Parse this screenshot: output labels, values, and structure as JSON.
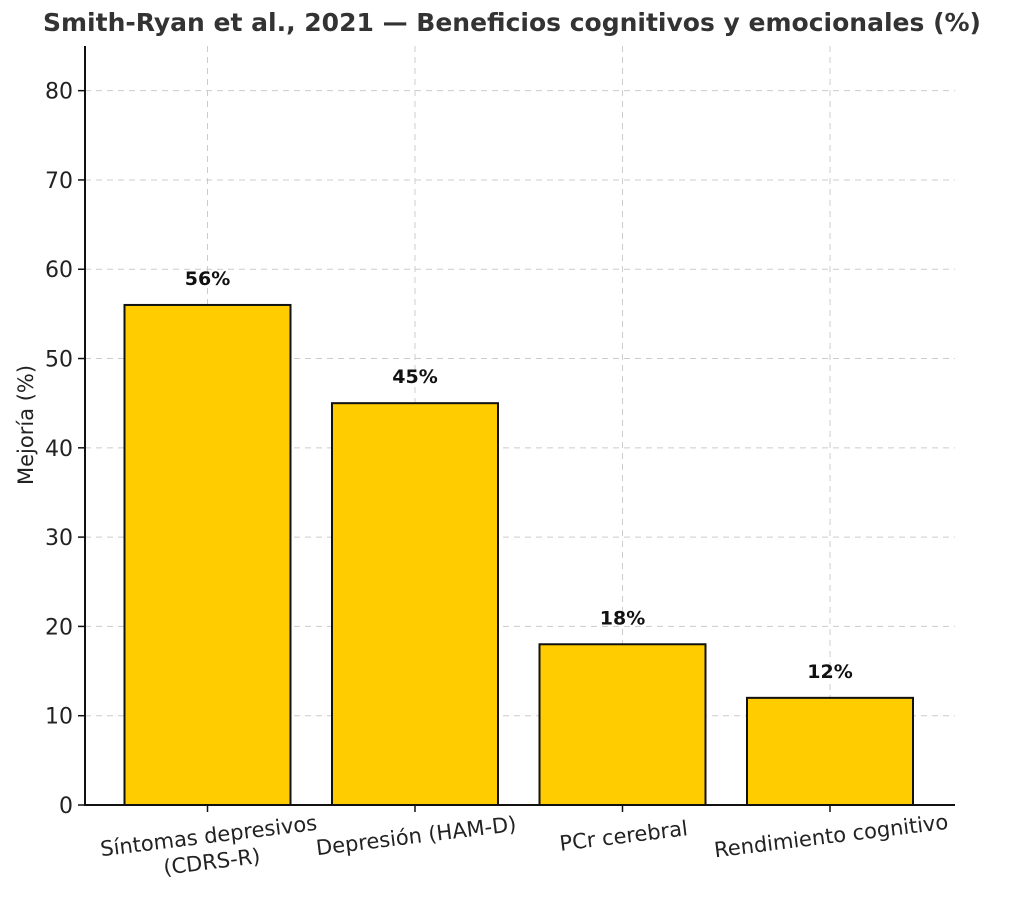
{
  "chart_data": {
    "type": "bar",
    "title": "Smith-Ryan et al., 2021 — Beneficios cognitivos y emocionales (%)",
    "xlabel": "",
    "ylabel": "Mejoría (%)",
    "categories": [
      [
        "Síntomas depresivos",
        "(CDRS-R)"
      ],
      [
        "Depresión (HAM-D)"
      ],
      [
        "PCr cerebral"
      ],
      [
        "Rendimiento cognitivo"
      ]
    ],
    "values": [
      56,
      45,
      18,
      12
    ],
    "value_labels": [
      "56%",
      "45%",
      "18%",
      "12%"
    ],
    "ylim": [
      0,
      85
    ],
    "yticks": [
      0,
      10,
      20,
      30,
      40,
      50,
      60,
      70,
      80
    ],
    "grid": true,
    "bar_color": "#FFCC00",
    "bar_edge_color": "#111111"
  }
}
